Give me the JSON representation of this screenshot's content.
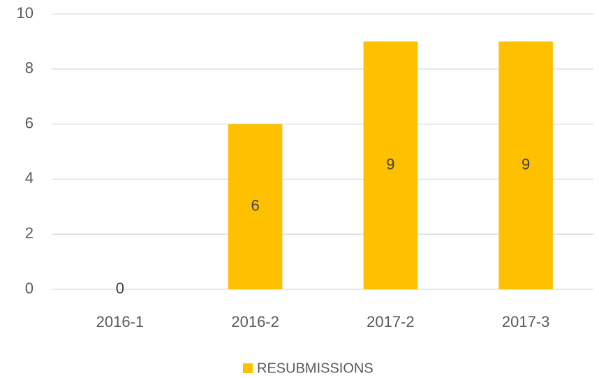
{
  "chart_data": {
    "type": "bar",
    "categories": [
      "2016-1",
      "2016-2",
      "2017-2",
      "2017-3"
    ],
    "series": [
      {
        "name": "RESUBMISSIONS",
        "color": "#ffc000",
        "values": [
          0,
          6,
          9,
          9
        ]
      }
    ],
    "ylim": [
      0,
      10
    ],
    "yticks": [
      0,
      2,
      4,
      6,
      8,
      10
    ],
    "grid": true,
    "legend": "bottom",
    "data_labels": true
  }
}
